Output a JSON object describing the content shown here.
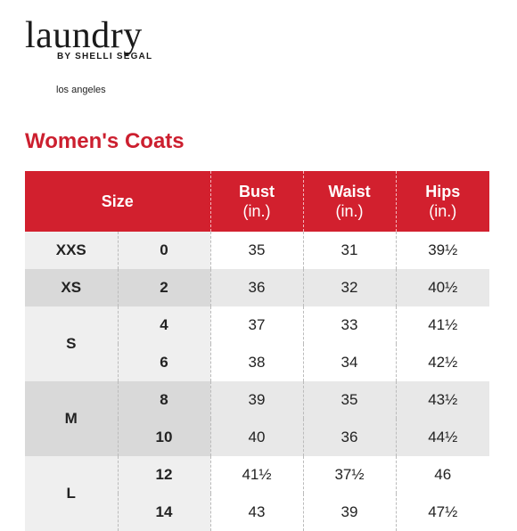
{
  "brand": {
    "name": "laundry",
    "tagline": "BY SHELLI SEGAL",
    "city": "los angeles"
  },
  "title": "Women's Coats",
  "table": {
    "headers": {
      "size": "Size",
      "bust": "Bust",
      "waist": "Waist",
      "hips": "Hips",
      "unit": "(in.)"
    },
    "rows": [
      {
        "size": "XXS",
        "num": "0",
        "bust": "35",
        "waist": "31",
        "hips": "39½"
      },
      {
        "size": "XS",
        "num": "2",
        "bust": "36",
        "waist": "32",
        "hips": "40½"
      },
      {
        "size": "S",
        "num": "4",
        "bust": "37",
        "waist": "33",
        "hips": "41½"
      },
      {
        "size": "",
        "num": "6",
        "bust": "38",
        "waist": "34",
        "hips": "42½"
      },
      {
        "size": "M",
        "num": "8",
        "bust": "39",
        "waist": "35",
        "hips": "43½"
      },
      {
        "size": "",
        "num": "10",
        "bust": "40",
        "waist": "36",
        "hips": "44½"
      },
      {
        "size": "L",
        "num": "12",
        "bust": "41½",
        "waist": "37½",
        "hips": "46"
      },
      {
        "size": "",
        "num": "14",
        "bust": "43",
        "waist": "39",
        "hips": "47½"
      }
    ]
  },
  "colors": {
    "accent": "#cc1f2f",
    "header_bg": "#d2202e"
  }
}
